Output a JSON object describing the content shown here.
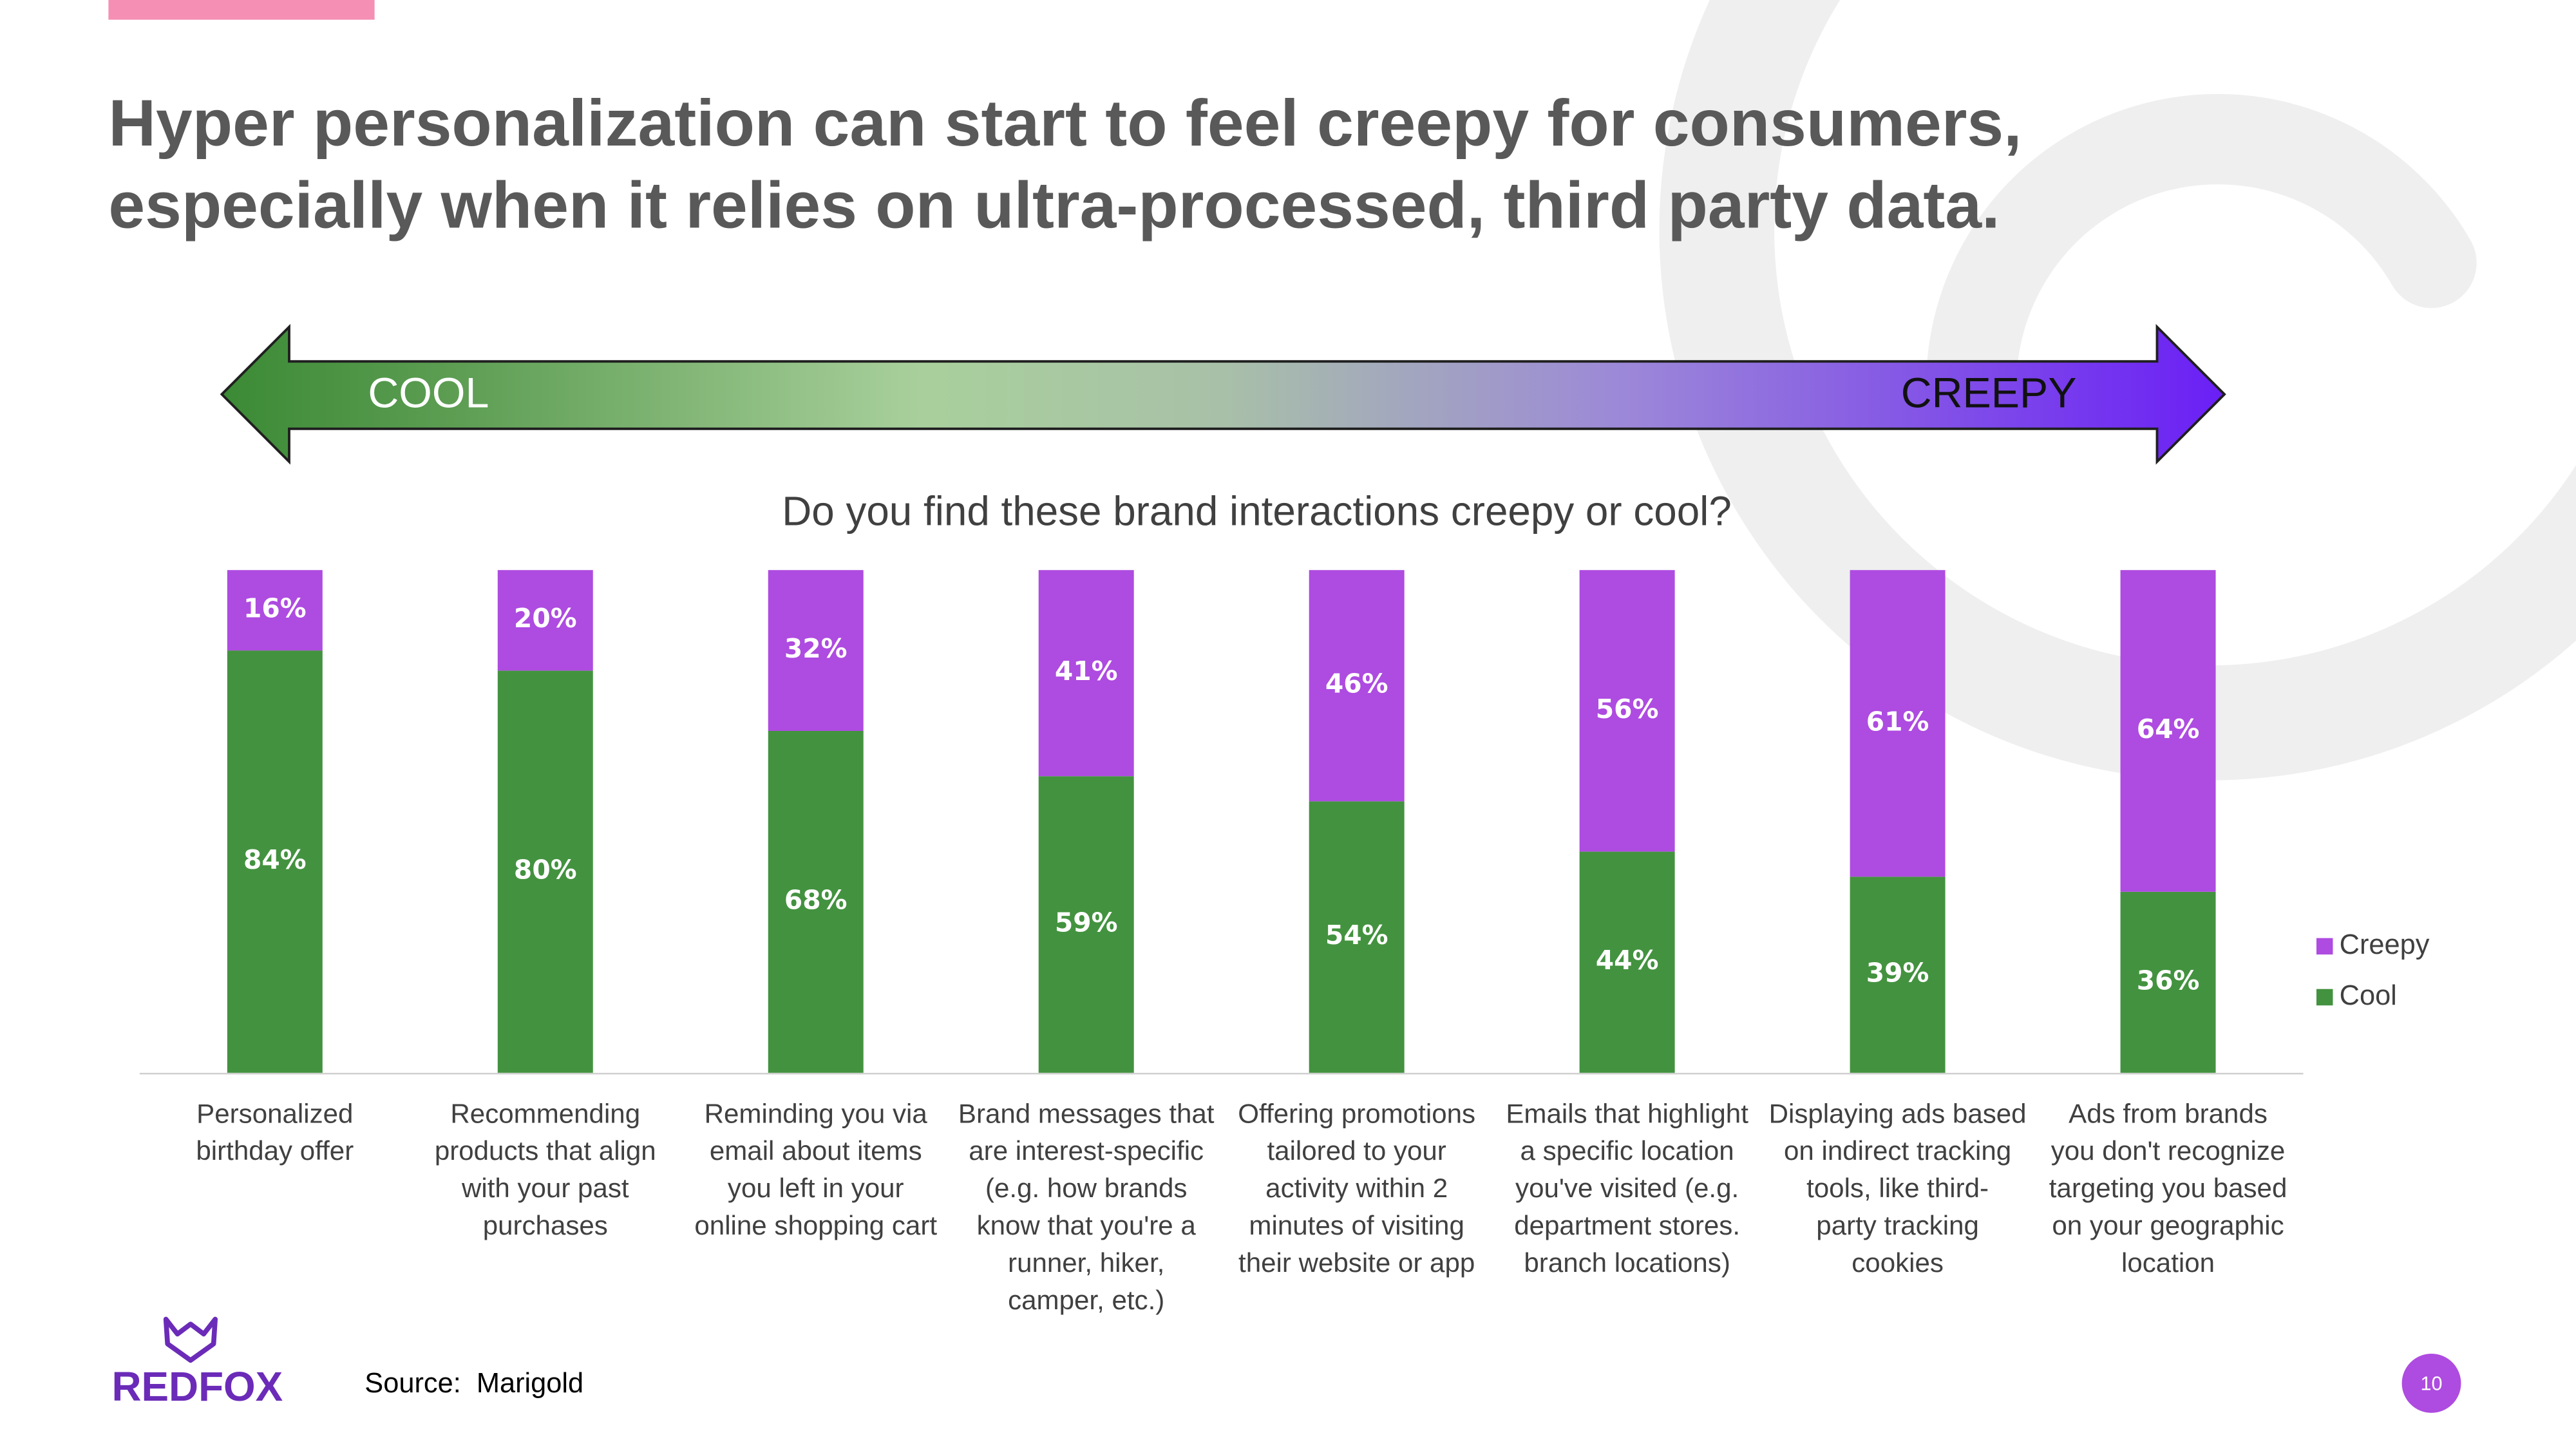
{
  "page": {
    "title": [
      "Hyper personalization can start to feel creepy for consumers,",
      "especially when it relies on ultra-processed, third party data."
    ],
    "scale": {
      "left": "COOL",
      "right": "CREEPY"
    },
    "source": "Source:  Marigold",
    "logo": "REDFOX",
    "page_number": "10"
  },
  "chart_data": {
    "type": "bar",
    "stacked": true,
    "title": "Do you find these brand interactions creepy or cool?",
    "categories": [
      [
        "Personalized",
        "birthday offer"
      ],
      [
        "Recommending",
        "products that align",
        "with your past",
        "purchases"
      ],
      [
        "Reminding you via",
        "email about items",
        "you left in your",
        "online shopping cart"
      ],
      [
        "Brand messages that",
        "are interest-specific",
        "(e.g. how brands",
        "know that you're a",
        "runner, hiker,",
        "camper, etc.)"
      ],
      [
        "Offering promotions",
        "tailored to your",
        "activity within 2",
        "minutes of visiting",
        "their website or app"
      ],
      [
        "Emails that highlight",
        "a specific location",
        "you've visited (e.g.",
        "department stores.",
        "branch locations)"
      ],
      [
        "Displaying ads based",
        "on indirect tracking",
        "tools, like third-",
        "party tracking",
        "cookies"
      ],
      [
        "Ads from brands",
        "you don't recognize",
        "targeting you based",
        "on your geographic",
        "location"
      ]
    ],
    "series": [
      {
        "name": "Cool",
        "color": "#43923f",
        "values": [
          84,
          80,
          68,
          59,
          54,
          44,
          39,
          36
        ],
        "value_labels": [
          "84%",
          "80%",
          "68%",
          "59%",
          "54%",
          "44%",
          "39%",
          "36%"
        ]
      },
      {
        "name": "Creepy",
        "color": "#ae4be0",
        "values": [
          16,
          20,
          32,
          41,
          46,
          56,
          61,
          64
        ],
        "value_labels": [
          "16%",
          "20%",
          "32%",
          "41%",
          "46%",
          "56%",
          "61%",
          "64%"
        ]
      }
    ],
    "ylim": [
      0,
      100
    ],
    "legend": "right"
  }
}
